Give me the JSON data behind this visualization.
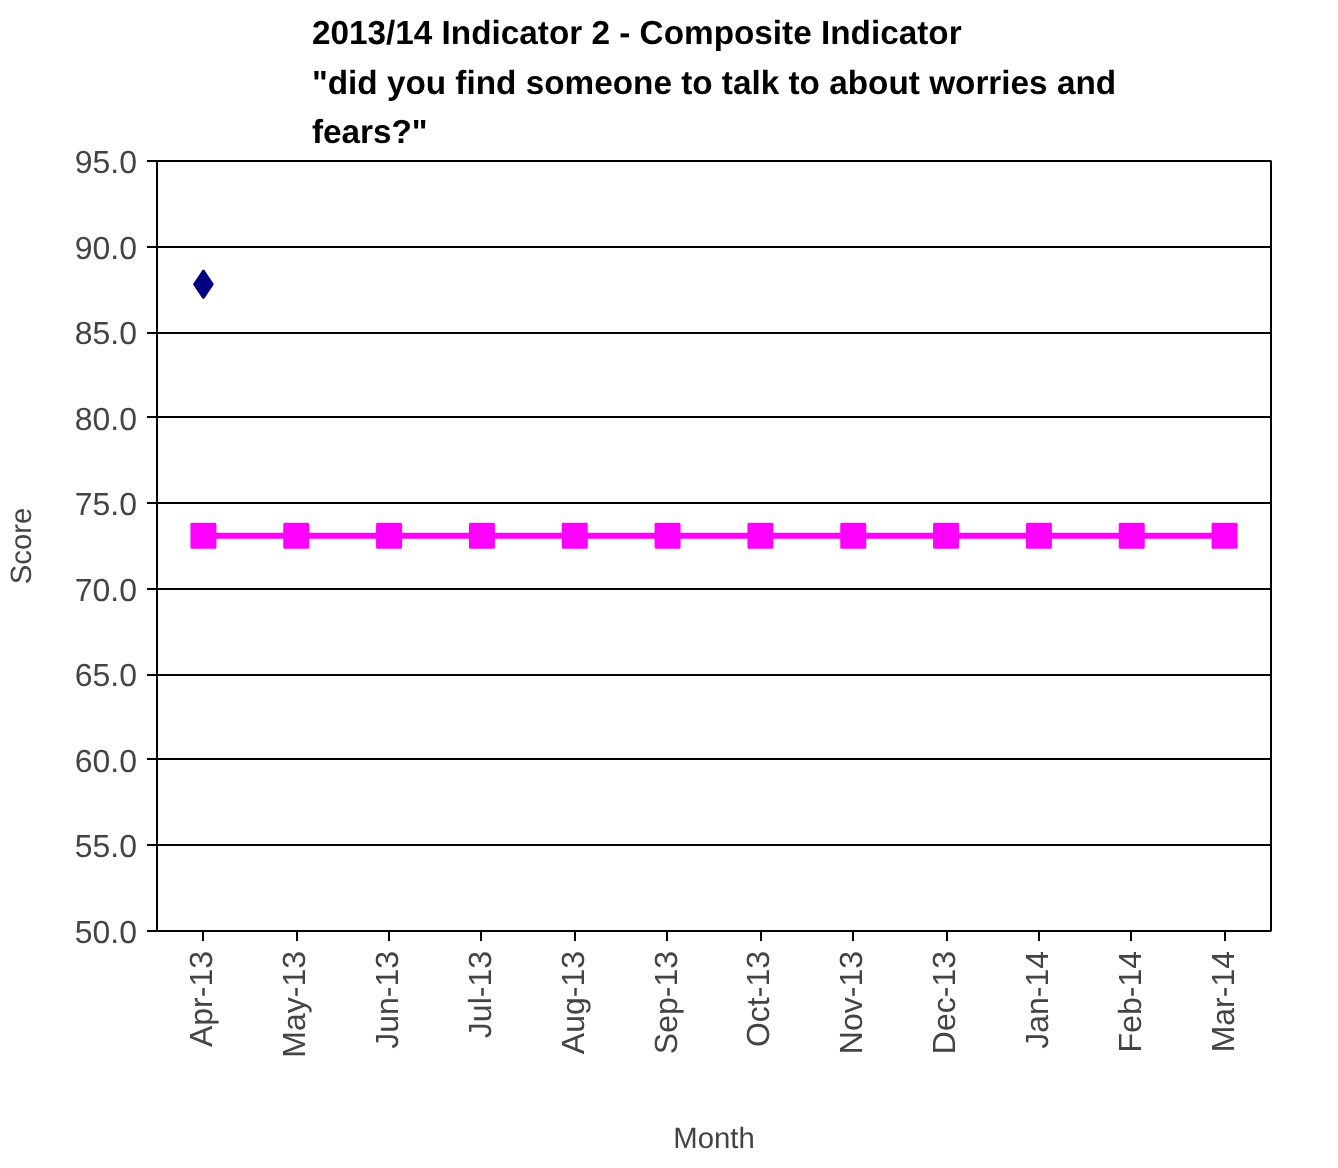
{
  "chart_data": {
    "type": "line",
    "title": "2013/14 Indicator 2 - Composite Indicator\n\"did you find someone to talk to about worries and\nfears?\"",
    "xlabel": "Month",
    "ylabel": "Score",
    "categories": [
      "Apr-13",
      "May-13",
      "Jun-13",
      "Jul-13",
      "Aug-13",
      "Sep-13",
      "Oct-13",
      "Nov-13",
      "Dec-13",
      "Jan-14",
      "Feb-14",
      "Mar-14"
    ],
    "series": [
      {
        "marker": "diamond",
        "color": "#000080",
        "values": [
          87.8,
          null,
          null,
          null,
          null,
          null,
          null,
          null,
          null,
          null,
          null,
          null
        ]
      },
      {
        "marker": "square",
        "color": "#ff00ff",
        "values": [
          73.1,
          73.1,
          73.1,
          73.1,
          73.1,
          73.1,
          73.1,
          73.1,
          73.1,
          73.1,
          73.1,
          73.1
        ]
      }
    ],
    "ylim": [
      50,
      95
    ],
    "yticks": [
      {
        "value": 50,
        "label": "50.0"
      },
      {
        "value": 55,
        "label": "55.0"
      },
      {
        "value": 60,
        "label": "60.0"
      },
      {
        "value": 65,
        "label": "65.0"
      },
      {
        "value": 70,
        "label": "70.0"
      },
      {
        "value": 75,
        "label": "75.0"
      },
      {
        "value": 80,
        "label": "80.0"
      },
      {
        "value": 85,
        "label": "85.0"
      },
      {
        "value": 90,
        "label": "90.0"
      },
      {
        "value": 95,
        "label": "95.0"
      }
    ],
    "grid": "y"
  }
}
